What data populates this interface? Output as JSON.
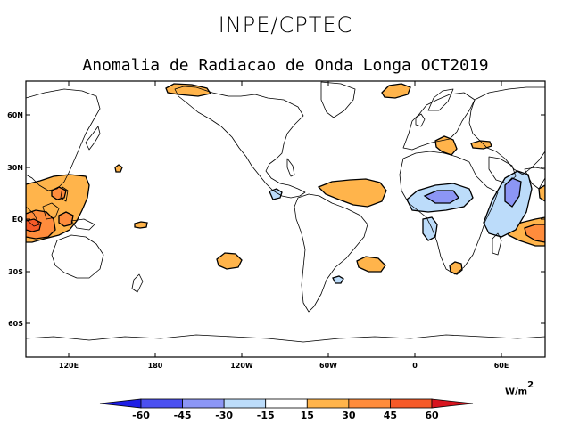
{
  "header": {
    "org": "INPE/CPTEC",
    "title": "Anomalia de Radiacao de Onda Longa OCT2019"
  },
  "map": {
    "lat_ticks": [
      "60N",
      "30N",
      "EQ",
      "30S",
      "60S"
    ],
    "lon_ticks": [
      "120E",
      "180",
      "120W",
      "60W",
      "0",
      "60E"
    ]
  },
  "colorbar": {
    "unit_base": "W/m",
    "unit_exp": "2",
    "labels": [
      "-60",
      "-45",
      "-30",
      "-15",
      "15",
      "30",
      "45",
      "60"
    ],
    "colors": [
      "#1e1ee6",
      "#4b50f0",
      "#8c96f5",
      "#bcdcfa",
      "#ffffff",
      "#ffb44b",
      "#ff8c3c",
      "#f55a28",
      "#d7141e"
    ]
  }
}
